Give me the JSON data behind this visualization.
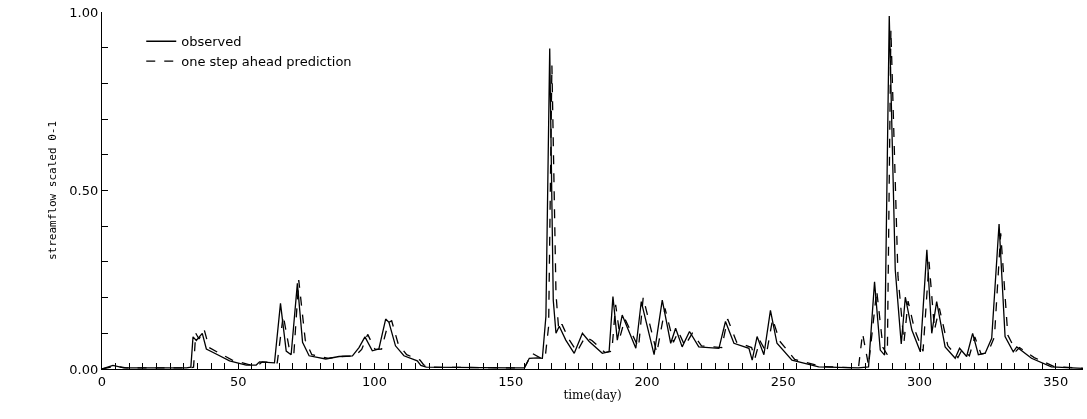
{
  "chart_data": {
    "type": "line",
    "xlabel": "time(day)",
    "ylabel": "streamflow scaled 0-1",
    "xlim": [
      0,
      360
    ],
    "ylim": [
      0,
      1
    ],
    "xticks": [
      0,
      {
        "value": 5,
        "label": null
      },
      {
        "value": 10,
        "label": null
      },
      {
        "value": 15,
        "label": null
      },
      {
        "value": 20,
        "label": null
      },
      {
        "value": 25,
        "label": null
      },
      {
        "value": 30,
        "label": null
      },
      {
        "value": 35,
        "label": null
      },
      {
        "value": 40,
        "label": null
      },
      {
        "value": 45,
        "label": null
      },
      50,
      {
        "value": 55,
        "label": null
      },
      {
        "value": 60,
        "label": null
      },
      {
        "value": 65,
        "label": null
      },
      {
        "value": 70,
        "label": null
      },
      {
        "value": 75,
        "label": null
      },
      {
        "value": 80,
        "label": null
      },
      {
        "value": 85,
        "label": null
      },
      {
        "value": 90,
        "label": null
      },
      {
        "value": 95,
        "label": null
      },
      100,
      {
        "value": 105,
        "label": null
      },
      {
        "value": 110,
        "label": null
      },
      {
        "value": 115,
        "label": null
      },
      {
        "value": 120,
        "label": null
      },
      {
        "value": 125,
        "label": null
      },
      {
        "value": 130,
        "label": null
      },
      {
        "value": 135,
        "label": null
      },
      {
        "value": 140,
        "label": null
      },
      {
        "value": 145,
        "label": null
      },
      150,
      {
        "value": 155,
        "label": null
      },
      {
        "value": 160,
        "label": null
      },
      {
        "value": 165,
        "label": null
      },
      {
        "value": 170,
        "label": null
      },
      {
        "value": 175,
        "label": null
      },
      {
        "value": 180,
        "label": null
      },
      {
        "value": 185,
        "label": null
      },
      {
        "value": 190,
        "label": null
      },
      {
        "value": 195,
        "label": null
      },
      200,
      {
        "value": 205,
        "label": null
      },
      {
        "value": 210,
        "label": null
      },
      {
        "value": 215,
        "label": null
      },
      {
        "value": 220,
        "label": null
      },
      {
        "value": 225,
        "label": null
      },
      {
        "value": 230,
        "label": null
      },
      {
        "value": 235,
        "label": null
      },
      {
        "value": 240,
        "label": null
      },
      {
        "value": 245,
        "label": null
      },
      250,
      {
        "value": 255,
        "label": null
      },
      {
        "value": 260,
        "label": null
      },
      {
        "value": 265,
        "label": null
      },
      {
        "value": 270,
        "label": null
      },
      {
        "value": 275,
        "label": null
      },
      {
        "value": 280,
        "label": null
      },
      {
        "value": 285,
        "label": null
      },
      {
        "value": 290,
        "label": null
      },
      {
        "value": 295,
        "label": null
      },
      300,
      {
        "value": 305,
        "label": null
      },
      {
        "value": 310,
        "label": null
      },
      {
        "value": 315,
        "label": null
      },
      {
        "value": 320,
        "label": null
      },
      {
        "value": 325,
        "label": null
      },
      {
        "value": 330,
        "label": null
      },
      {
        "value": 335,
        "label": null
      },
      {
        "value": 340,
        "label": null
      },
      {
        "value": 345,
        "label": null
      },
      350,
      {
        "value": 355,
        "label": null
      }
    ],
    "yticks": [
      {
        "value": 0,
        "label": "0.00"
      },
      {
        "value": 0.1,
        "label": null
      },
      {
        "value": 0.2,
        "label": null
      },
      {
        "value": 0.3,
        "label": null
      },
      {
        "value": 0.4,
        "label": null
      },
      {
        "value": 0.5,
        "label": "0.50"
      },
      {
        "value": 0.6,
        "label": null
      },
      {
        "value": 0.7,
        "label": null
      },
      {
        "value": 0.8,
        "label": null
      },
      {
        "value": 0.9,
        "label": null
      },
      {
        "value": 1,
        "label": "1.00"
      }
    ],
    "grid": false,
    "legend": "top left",
    "marker": "none",
    "series": [
      {
        "name": "observed",
        "color": "#000000",
        "line_style": "solid",
        "x": [
          0,
          4,
          8,
          31,
          32.6,
          33.4,
          34.6,
          36.8,
          38.3,
          41.9,
          46.8,
          52.9,
          56.6,
          57.8,
          63.3,
          65.5,
          67.6,
          69.4,
          71.7,
          73.6,
          76,
          82.1,
          87,
          91.9,
          94.3,
          96.5,
          99.2,
          101.6,
          104.1,
          105.3,
          107.7,
          110.8,
          115.7,
          117,
          119,
          155,
          156.8,
          159.8,
          161.6,
          162.9,
          164.3,
          165.6,
          166.6,
          167.8,
          170.2,
          173.3,
          176.3,
          178.8,
          183.6,
          186.1,
          187.5,
          189.1,
          190.9,
          195.9,
          197.9,
          202.6,
          205.6,
          208.7,
          210.5,
          212.9,
          215.6,
          219,
          226.4,
          228.8,
          231.9,
          237.4,
          238.6,
          240.4,
          242.9,
          245.3,
          247.7,
          253.2,
          263,
          277.6,
          281.3,
          283.5,
          285.6,
          287.2,
          288.9,
          291.1,
          293.3,
          294.8,
          297.2,
          300.3,
          302.7,
          304.5,
          306.3,
          309.4,
          313.1,
          314.7,
          317.3,
          319.5,
          321.6,
          324.1,
          326.5,
          329.2,
          331.4,
          334.4,
          335.7,
          341.1,
          348.4,
          360
        ],
        "values": [
          0,
          0.01,
          0.003,
          0.003,
          0.005,
          0.09,
          0.08,
          0.1,
          0.056,
          0.042,
          0.023,
          0.011,
          0.011,
          0.02,
          0.017,
          0.184,
          0.05,
          0.04,
          0.24,
          0.075,
          0.037,
          0.028,
          0.035,
          0.037,
          0.06,
          0.09,
          0.051,
          0.056,
          0.14,
          0.131,
          0.065,
          0.037,
          0.023,
          0.01,
          0.005,
          0.003,
          0.03,
          0.031,
          0.03,
          0.147,
          0.898,
          0.193,
          0.1,
          0.12,
          0.081,
          0.044,
          0.1,
          0.077,
          0.044,
          0.049,
          0.203,
          0.081,
          0.151,
          0.058,
          0.189,
          0.04,
          0.193,
          0.072,
          0.114,
          0.062,
          0.105,
          0.062,
          0.058,
          0.133,
          0.072,
          0.058,
          0.025,
          0.091,
          0.04,
          0.164,
          0.072,
          0.025,
          0.006,
          0.003,
          0.006,
          0.244,
          0.053,
          0.039,
          0.989,
          0.278,
          0.07,
          0.201,
          0.109,
          0.048,
          0.334,
          0.1,
          0.189,
          0.062,
          0.03,
          0.058,
          0.035,
          0.1,
          0.04,
          0.044,
          0.086,
          0.406,
          0.091,
          0.048,
          0.062,
          0.03,
          0.006,
          0.002
        ]
      },
      {
        "name": "one step ahead prediction",
        "color": "#000000",
        "line_style": "dashed",
        "x": [
          0,
          5,
          9,
          32,
          33.6,
          34.4,
          35.6,
          37.5,
          39.3,
          42.9,
          47.8,
          53.9,
          57.6,
          58.8,
          64.3,
          66.5,
          68.6,
          70.4,
          72.2,
          74.6,
          77,
          83.1,
          88,
          92.9,
          95.3,
          97.5,
          100.2,
          102.6,
          105.1,
          106.3,
          108.7,
          111.8,
          116.7,
          118,
          120,
          155,
          157.8,
          160.8,
          162.6,
          163.9,
          165.1,
          166.6,
          167.6,
          168.8,
          171.2,
          174.3,
          177.3,
          179.8,
          184.6,
          187.1,
          188.5,
          190.1,
          191.9,
          196.9,
          198.6,
          203.6,
          206.6,
          209.7,
          211.5,
          213.9,
          216.6,
          220,
          227.4,
          229.6,
          232.9,
          238.4,
          239.6,
          241.4,
          243.9,
          246.1,
          248.7,
          254.2,
          264,
          277.6,
          279.1,
          281.3,
          284.3,
          286.6,
          288.2,
          289.5,
          292.1,
          294.3,
          295.8,
          298.2,
          301.3,
          303.5,
          305.5,
          307.3,
          310.4,
          314.1,
          315.7,
          318.3,
          320.3,
          322.6,
          325.1,
          327.5,
          329.8,
          332.4,
          335.4,
          336.7,
          342.1,
          349.4,
          360
        ],
        "values": [
          0,
          0.008,
          0.003,
          0.003,
          0.005,
          0.1,
          0.084,
          0.11,
          0.06,
          0.045,
          0.025,
          0.012,
          0.012,
          0.02,
          0.017,
          0.15,
          0.062,
          0.042,
          0.249,
          0.08,
          0.04,
          0.03,
          0.035,
          0.037,
          0.055,
          0.097,
          0.055,
          0.056,
          0.13,
          0.135,
          0.07,
          0.04,
          0.025,
          0.012,
          0.005,
          0.003,
          0.044,
          0.031,
          0.03,
          0.12,
          0.85,
          0.21,
          0.11,
          0.125,
          0.085,
          0.048,
          0.09,
          0.08,
          0.046,
          0.05,
          0.18,
          0.09,
          0.14,
          0.06,
          0.2,
          0.045,
          0.17,
          0.075,
          0.105,
          0.065,
          0.1,
          0.065,
          0.06,
          0.14,
          0.075,
          0.06,
          0.03,
          0.08,
          0.045,
          0.14,
          0.078,
          0.027,
          0.007,
          0.003,
          0.1,
          0.01,
          0.22,
          0.06,
          0.04,
          0.95,
          0.26,
          0.075,
          0.19,
          0.11,
          0.05,
          0.3,
          0.11,
          0.17,
          0.065,
          0.032,
          0.055,
          0.037,
          0.09,
          0.042,
          0.046,
          0.09,
          0.38,
          0.095,
          0.05,
          0.06,
          0.032,
          0.007,
          0.002
        ]
      }
    ]
  }
}
